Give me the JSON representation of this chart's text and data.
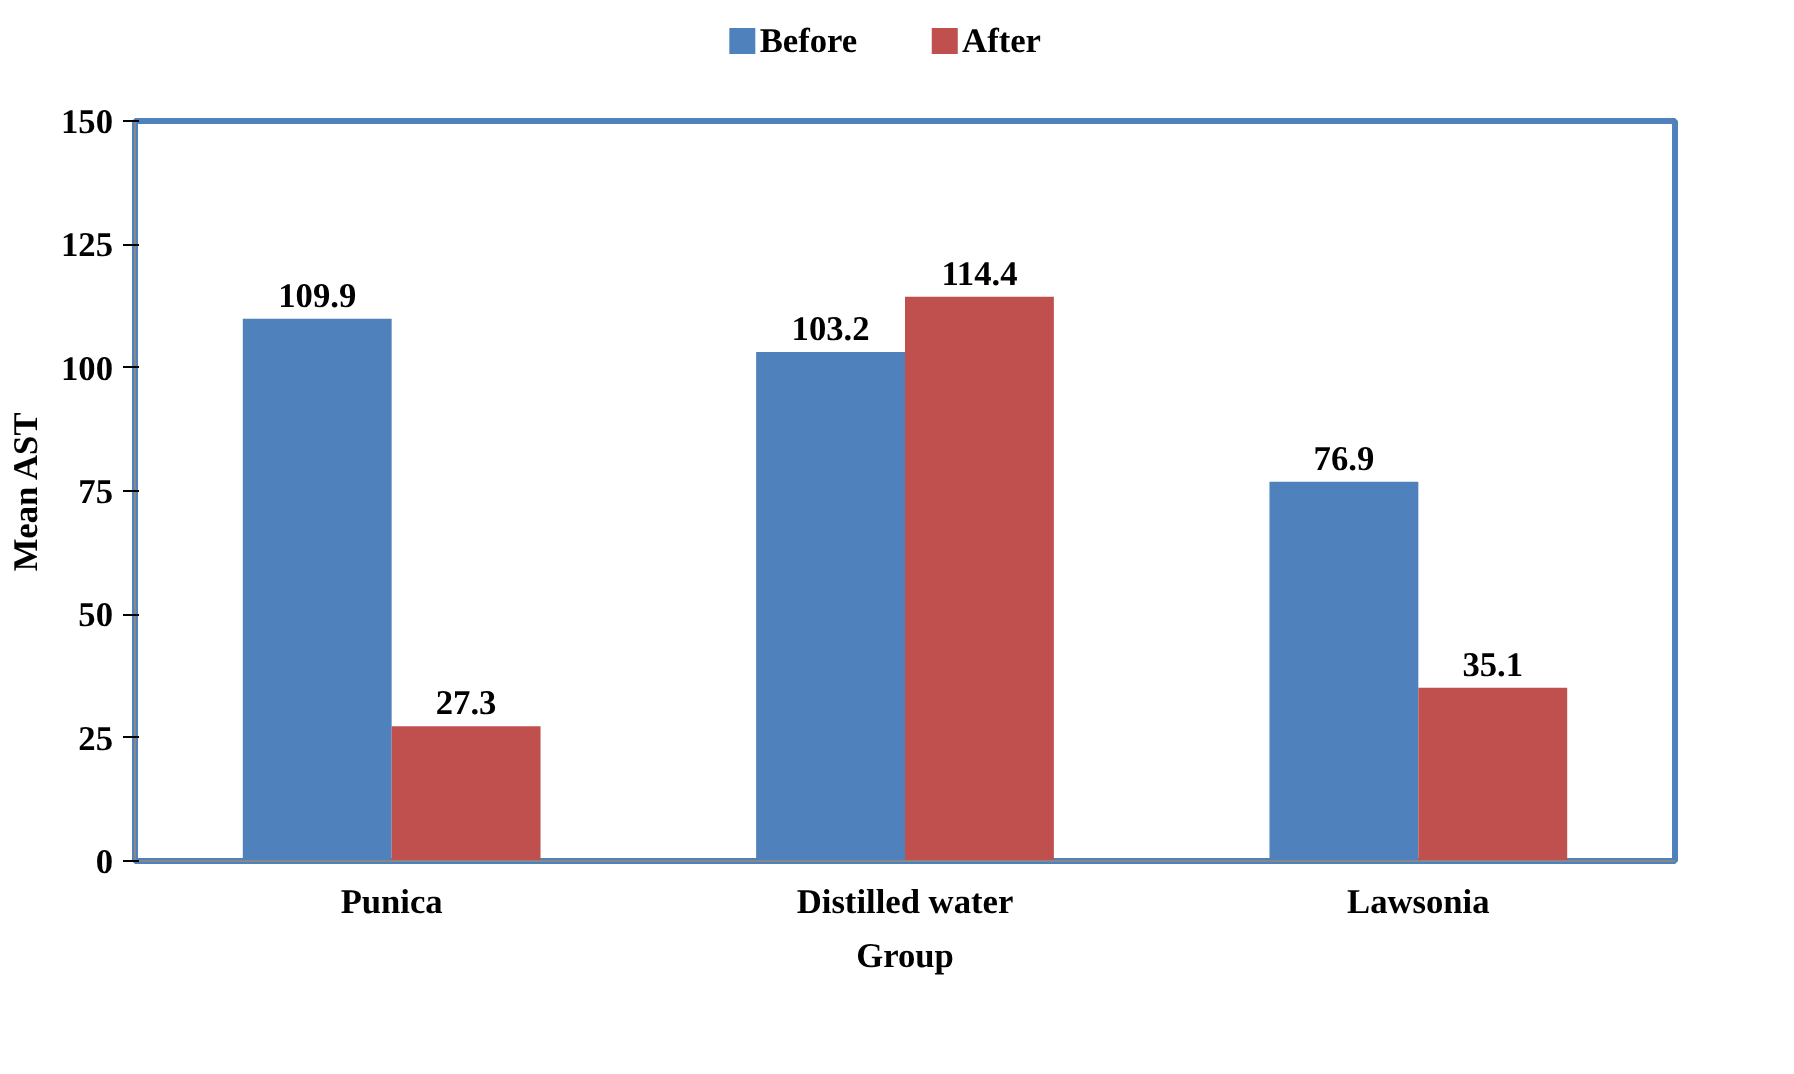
{
  "chart_data": {
    "type": "bar",
    "xlabel": "Group",
    "ylabel": "Mean AST",
    "categories": [
      "Punica",
      "Distilled water",
      "Lawsonia"
    ],
    "series": [
      {
        "name": "Before",
        "color": "#4f81bd",
        "values": [
          109.9,
          103.2,
          76.9
        ]
      },
      {
        "name": "After",
        "color": "#c0504d",
        "values": [
          27.3,
          114.4,
          35.1
        ]
      }
    ],
    "ylim": [
      0,
      150
    ],
    "yticks": [
      0,
      25,
      50,
      75,
      100,
      125,
      150
    ],
    "grid": false,
    "legend": "top",
    "data_labels": true
  }
}
